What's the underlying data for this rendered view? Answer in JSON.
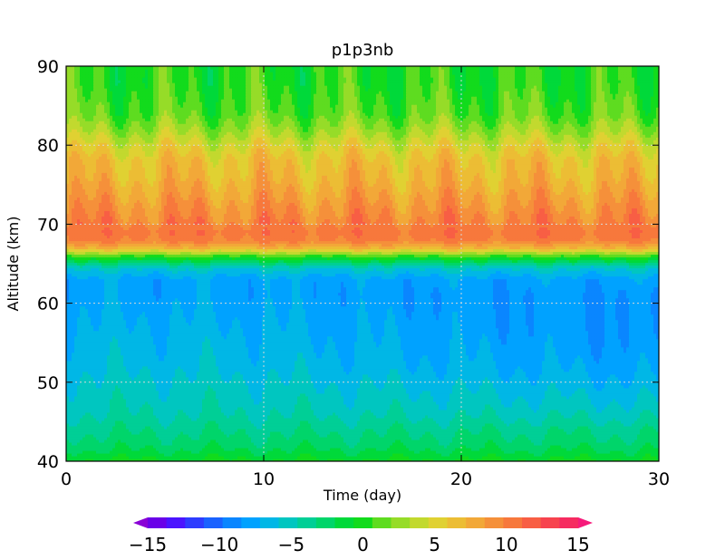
{
  "chart_data": {
    "type": "heatmap",
    "title": "p1p3nb",
    "xlabel": "Time (day)",
    "ylabel": "Altitude (km)",
    "xlim": [
      0,
      30
    ],
    "ylim": [
      40,
      90
    ],
    "x_ticks": [
      "0",
      "10",
      "20",
      "30"
    ],
    "y_ticks": [
      "40",
      "50",
      "60",
      "70",
      "80",
      "90"
    ],
    "x_tick_values": [
      0,
      10,
      20,
      30
    ],
    "y_tick_values": [
      40,
      50,
      60,
      70,
      80,
      90
    ],
    "grid": true,
    "colorbar": {
      "min": -15,
      "max": 15,
      "step": 1.25,
      "labels": [
        "−15",
        "−10",
        "−5",
        "0",
        "5",
        "10",
        "15"
      ],
      "label_values": [
        -15,
        -10,
        -5,
        0,
        5,
        10,
        15
      ],
      "colors": [
        "#8a00d6",
        "#6a00e8",
        "#4b14ff",
        "#2e3cff",
        "#1a62ff",
        "#0a86ff",
        "#00a2ff",
        "#00b7e6",
        "#00c6c0",
        "#00cf96",
        "#00d56a",
        "#00d93a",
        "#12db1c",
        "#5edc20",
        "#96dc28",
        "#c2d92e",
        "#e0d132",
        "#ecbd34",
        "#f2a838",
        "#f5903a",
        "#f7783c",
        "#f85e44",
        "#f7434e",
        "#f62b60",
        "#f61a7a"
      ]
    },
    "profile": {
      "altitude": [
        40,
        42,
        44,
        46,
        48,
        50,
        52,
        55,
        58,
        61,
        63,
        64.5,
        66,
        67,
        68,
        69,
        70,
        72,
        74,
        76,
        78,
        80,
        82,
        84,
        86,
        88,
        90
      ],
      "value": [
        -1,
        -3,
        -4,
        -5,
        -5.5,
        -6,
        -6.5,
        -7,
        -7.5,
        -8,
        -8,
        -6,
        0,
        6,
        9,
        9.5,
        9,
        8,
        7,
        6,
        5.5,
        4,
        2,
        0.5,
        0,
        -0.5,
        -0.5
      ]
    }
  }
}
